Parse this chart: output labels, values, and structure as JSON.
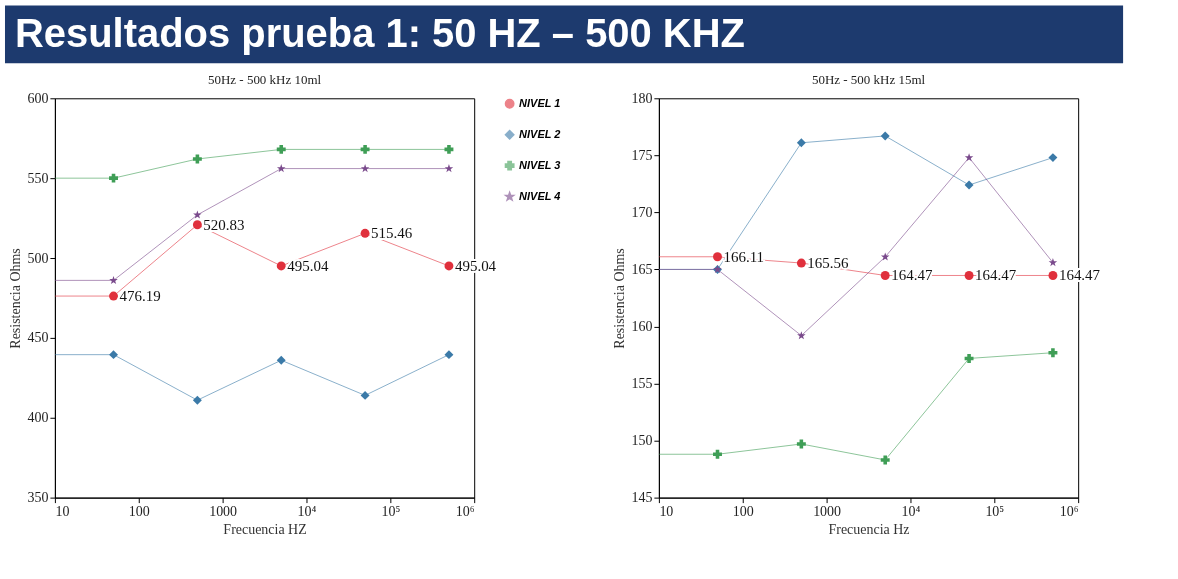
{
  "chart_data": [
    {
      "type": "other",
      "title": "Resultados prueba 1: 50 HZ – 500 KHZ"
    },
    {
      "type": "line",
      "title": "50Hz - 500 kHz 10ml",
      "xlabel": "Frecuencia HZ",
      "ylabel": "Resistencia Ohms",
      "x": [
        10,
        50,
        500,
        5000,
        50000,
        500000
      ],
      "xlim": [
        10,
        1000000
      ],
      "xticks": [
        10,
        100,
        1000,
        {
          "value": 10000,
          "label": "10⁴"
        },
        {
          "value": 100000,
          "label": "10⁵"
        },
        {
          "value": 1000000,
          "label": "10⁶"
        }
      ],
      "log": "x",
      "ylim": [
        350,
        600
      ],
      "yticks": [
        350,
        400,
        450,
        500,
        550,
        600
      ],
      "grid": false,
      "legend": "right",
      "series": [
        {
          "name": "NIVEL 1",
          "color": "#e0303c",
          "marker": "circle",
          "values": [
            476.19,
            476.19,
            520.83,
            495.04,
            515.46,
            495.04
          ],
          "value_labels": [
            null,
            "476.19",
            "520.83",
            "495.04",
            "515.46",
            "495.04"
          ]
        },
        {
          "name": "NIVEL 2",
          "color": "#3b7aa8",
          "marker": "diamond",
          "values": [
            439.5,
            439.5,
            411,
            436,
            414,
            439.5
          ]
        },
        {
          "name": "NIVEL 3",
          "color": "#3f9e56",
          "marker": "cross",
          "values": [
            550,
            550,
            562,
            568,
            568,
            568
          ]
        },
        {
          "name": "NIVEL 4",
          "color": "#7a4a8c",
          "marker": "star",
          "values": [
            486,
            486,
            527,
            556,
            556,
            556
          ]
        }
      ]
    },
    {
      "type": "line",
      "title": "50Hz - 500 kHz 15ml",
      "xlabel": "Frecuencia Hz",
      "ylabel": "Resistencia Ohms",
      "x": [
        10,
        50,
        500,
        5000,
        50000,
        500000
      ],
      "xlim": [
        10,
        1000000
      ],
      "xticks": [
        10,
        100,
        1000,
        {
          "value": 10000,
          "label": "10⁴"
        },
        {
          "value": 100000,
          "label": "10⁵"
        },
        {
          "value": 1000000,
          "label": "10⁶"
        }
      ],
      "log": "x",
      "ylim": [
        145,
        180
      ],
      "yticks": [
        145,
        150,
        155,
        160,
        165,
        170,
        175,
        180
      ],
      "grid": false,
      "legend": false,
      "series": [
        {
          "color": "#e0303c",
          "marker": "circle",
          "values": [
            166.11,
            166.11,
            165.56,
            164.47,
            164.47,
            164.47
          ],
          "value_labels": [
            null,
            "166.11",
            "165.56",
            "164.47",
            "164.47",
            "164.47"
          ]
        },
        {
          "color": "#3b7aa8",
          "marker": "diamond",
          "values": [
            165,
            165,
            176.1,
            176.7,
            172.4,
            174.8
          ]
        },
        {
          "color": "#3f9e56",
          "marker": "cross",
          "values": [
            148.8,
            148.8,
            149.7,
            148.3,
            157.2,
            157.7
          ]
        },
        {
          "color": "#7a4a8c",
          "marker": "star",
          "values": [
            165,
            165,
            159.2,
            166.1,
            174.8,
            165.6
          ]
        }
      ]
    }
  ]
}
